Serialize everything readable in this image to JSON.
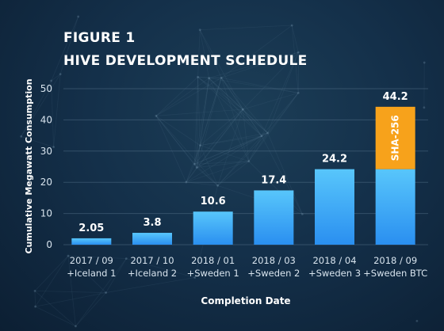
{
  "figure": {
    "label": "FIGURE 1",
    "title": "HIVE DEVELOPMENT SCHEDULE"
  },
  "chart_data": {
    "type": "bar",
    "stacked": true,
    "categories": [
      [
        "2017 / 09",
        "+Iceland 1"
      ],
      [
        "2017 / 10",
        "+Iceland 2"
      ],
      [
        "2018 / 01",
        "+Sweden 1"
      ],
      [
        "2018 / 03",
        "+Sweden 2"
      ],
      [
        "2018 / 04",
        "+Sweden 3"
      ],
      [
        "2018 / 09",
        "+Sweden BTC"
      ]
    ],
    "series": [
      {
        "values": [
          2.05,
          3.8,
          10.6,
          17.4,
          24.2,
          24.2
        ],
        "color": "#3fa9f5"
      },
      {
        "name": "SHA-256",
        "values": [
          0,
          0,
          0,
          0,
          0,
          20.0
        ],
        "color": "#f7a21b"
      }
    ],
    "totals": [
      "2.05",
      "3.8",
      "10.6",
      "17.4",
      "24.2",
      "44.2"
    ],
    "xlabel": "Completion Date",
    "ylabel": "Cumulative Megawatt Consumption",
    "ylim": [
      0,
      50
    ],
    "yticks": [
      0,
      10,
      20,
      30,
      40,
      50
    ],
    "grid": true
  }
}
